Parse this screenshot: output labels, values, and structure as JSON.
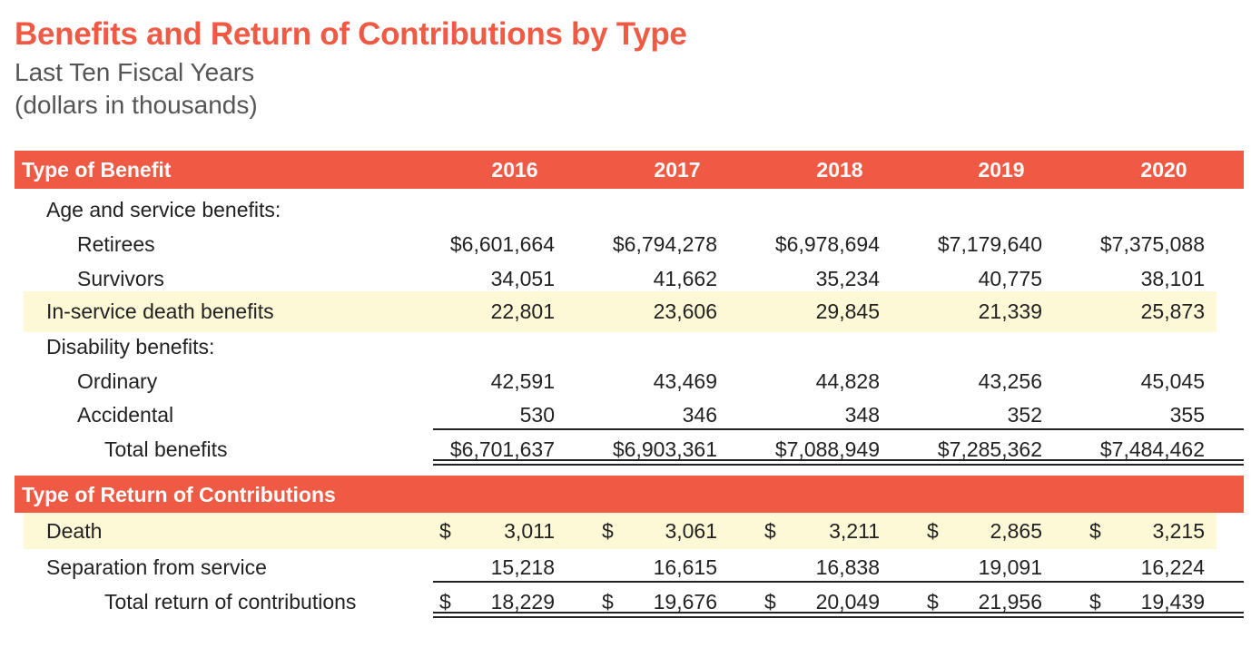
{
  "title": "Benefits and Return of Contributions by Type",
  "subtitle1": "Last Ten Fiscal Years",
  "subtitle2": "(dollars in thousands)",
  "years": [
    "2016",
    "2017",
    "2018",
    "2019",
    "2020"
  ],
  "benefits": {
    "header": "Type of Benefit",
    "age_service_label": "Age and service benefits:",
    "retirees": {
      "label": "Retirees",
      "values": [
        "$6,601,664",
        "$6,794,278",
        "$6,978,694",
        "$7,179,640",
        "$7,375,088"
      ]
    },
    "survivors": {
      "label": "Survivors",
      "values": [
        "34,051",
        "41,662",
        "35,234",
        "40,775",
        "38,101"
      ]
    },
    "inservice": {
      "label": "In-service death benefits",
      "values": [
        "22,801",
        "23,606",
        "29,845",
        "21,339",
        "25,873"
      ]
    },
    "disability_label": "Disability benefits:",
    "ordinary": {
      "label": "Ordinary",
      "values": [
        "42,591",
        "43,469",
        "44,828",
        "43,256",
        "45,045"
      ]
    },
    "accidental": {
      "label": "Accidental",
      "values": [
        "530",
        "346",
        "348",
        "352",
        "355"
      ]
    },
    "total": {
      "label": "Total benefits",
      "values": [
        "$6,701,637",
        "$6,903,361",
        "$7,088,949",
        "$7,285,362",
        "$7,484,462"
      ]
    }
  },
  "returns": {
    "header": "Type of Return of Contributions",
    "currency": "$",
    "death": {
      "label": "Death",
      "values": [
        "3,011",
        "3,061",
        "3,211",
        "2,865",
        "3,215"
      ]
    },
    "separation": {
      "label": "Separation from service",
      "values": [
        "15,218",
        "16,615",
        "16,838",
        "19,091",
        "16,224"
      ]
    },
    "total": {
      "label": "Total return of contributions",
      "values": [
        "18,229",
        "19,676",
        "20,049",
        "21,956",
        "19,439"
      ]
    }
  },
  "colors": {
    "accent": "#ef5a45",
    "highlight": "#fdf8d6"
  }
}
